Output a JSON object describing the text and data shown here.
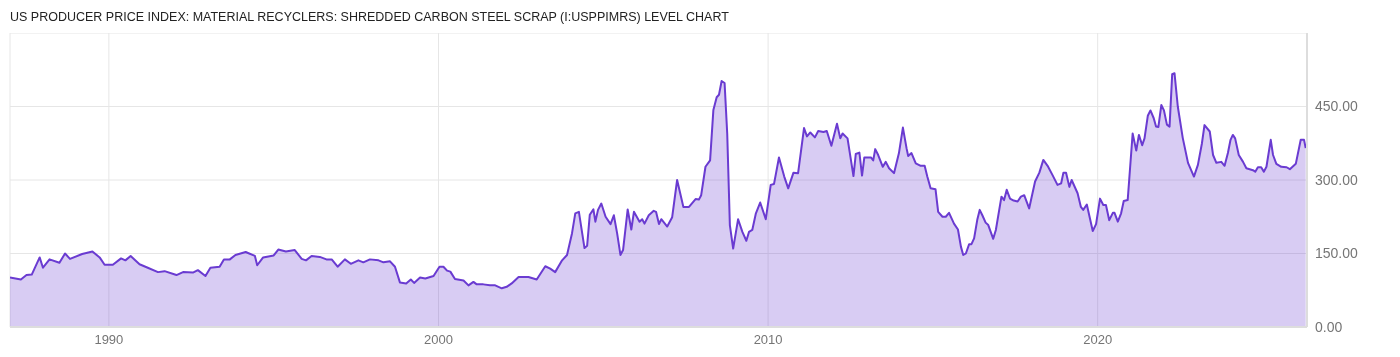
{
  "chart_data": {
    "type": "area",
    "title": "US PRODUCER PRICE INDEX: MATERIAL RECYCLERS: SHREDDED CARBON STEEL SCRAP (I:USPPIMRS) LEVEL CHART",
    "x": [
      1987.0,
      1987.33,
      1987.5,
      1987.66,
      1987.9,
      1988.0,
      1988.2,
      1988.5,
      1988.67,
      1988.82,
      1989.19,
      1989.5,
      1989.72,
      1989.87,
      1990.12,
      1990.37,
      1990.5,
      1990.66,
      1990.93,
      1991.18,
      1991.49,
      1991.69,
      1992.05,
      1992.25,
      1992.55,
      1992.7,
      1992.93,
      1993.08,
      1993.36,
      1993.49,
      1993.67,
      1993.84,
      1994.15,
      1994.43,
      1994.5,
      1994.68,
      1995.0,
      1995.14,
      1995.37,
      1995.64,
      1995.85,
      1995.98,
      1996.15,
      1996.4,
      1996.6,
      1996.76,
      1996.94,
      1997.16,
      1997.34,
      1997.57,
      1997.72,
      1997.92,
      1998.18,
      1998.33,
      1998.53,
      1998.68,
      1998.83,
      1999.02,
      1999.16,
      1999.26,
      1999.44,
      1999.6,
      1999.85,
      2000.03,
      2000.15,
      2000.26,
      2000.36,
      2000.5,
      2000.76,
      2000.91,
      2001.06,
      2001.16,
      2001.36,
      2001.56,
      2001.72,
      2001.92,
      2002.07,
      2002.22,
      2002.43,
      2002.73,
      2002.98,
      2003.24,
      2003.39,
      2003.54,
      2003.75,
      2003.9,
      2004.05,
      2004.15,
      2004.26,
      2004.43,
      2004.51,
      2004.59,
      2004.7,
      2004.76,
      2004.84,
      2004.94,
      2005.07,
      2005.22,
      2005.32,
      2005.42,
      2005.52,
      2005.6,
      2005.74,
      2005.85,
      2005.93,
      2006.1,
      2006.18,
      2006.25,
      2006.38,
      2006.53,
      2006.6,
      2006.69,
      2006.76,
      2006.94,
      2007.09,
      2007.24,
      2007.43,
      2007.6,
      2007.8,
      2007.9,
      2007.97,
      2008.1,
      2008.24,
      2008.34,
      2008.44,
      2008.51,
      2008.59,
      2008.68,
      2008.76,
      2008.84,
      2008.94,
      2009.09,
      2009.22,
      2009.34,
      2009.42,
      2009.52,
      2009.63,
      2009.76,
      2009.93,
      2010.08,
      2010.18,
      2010.33,
      2010.49,
      2010.61,
      2010.77,
      2010.91,
      2011.09,
      2011.18,
      2011.28,
      2011.42,
      2011.52,
      2011.68,
      2011.78,
      2011.92,
      2012.09,
      2012.19,
      2012.26,
      2012.41,
      2012.59,
      2012.66,
      2012.77,
      2012.85,
      2012.92,
      2013.12,
      2013.19,
      2013.25,
      2013.34,
      2013.48,
      2013.57,
      2013.67,
      2013.82,
      2013.97,
      2014.09,
      2014.2,
      2014.25,
      2014.35,
      2014.48,
      2014.63,
      2014.75,
      2014.83,
      2014.93,
      2015.08,
      2015.16,
      2015.29,
      2015.39,
      2015.49,
      2015.64,
      2015.76,
      2015.85,
      2015.92,
      2016.0,
      2016.1,
      2016.17,
      2016.25,
      2016.35,
      2016.42,
      2016.5,
      2016.6,
      2016.68,
      2016.83,
      2016.91,
      2017.08,
      2017.16,
      2017.24,
      2017.34,
      2017.45,
      2017.57,
      2017.67,
      2017.77,
      2017.92,
      2018.1,
      2018.23,
      2018.35,
      2018.48,
      2018.63,
      2018.78,
      2018.89,
      2018.96,
      2019.04,
      2019.14,
      2019.21,
      2019.39,
      2019.49,
      2019.56,
      2019.67,
      2019.85,
      2019.95,
      2020.07,
      2020.17,
      2020.25,
      2020.35,
      2020.46,
      2020.51,
      2020.61,
      2020.71,
      2020.79,
      2020.91,
      2021.06,
      2021.17,
      2021.25,
      2021.35,
      2021.42,
      2021.52,
      2021.6,
      2021.7,
      2021.77,
      2021.84,
      2021.93,
      2022.01,
      2022.1,
      2022.18,
      2022.26,
      2022.33,
      2022.43,
      2022.58,
      2022.74,
      2022.92,
      2023.04,
      2023.16,
      2023.24,
      2023.4,
      2023.5,
      2023.6,
      2023.75,
      2023.85,
      2023.95,
      2024.03,
      2024.1,
      2024.17,
      2024.28,
      2024.41,
      2024.51,
      2024.71,
      2024.78,
      2024.86,
      2024.96,
      2025.04,
      2025.12,
      2025.25,
      2025.32,
      2025.42,
      2025.57,
      2025.73,
      2025.83,
      2026.01,
      2026.16,
      2026.26,
      2026.31
    ],
    "series": [
      {
        "color": "#6a3bd1",
        "values": [
          101,
          97,
          106,
          107,
          142,
          121,
          138,
          131,
          150,
          139,
          149,
          154,
          142,
          127,
          127,
          140,
          136,
          145,
          128,
          121,
          112,
          114,
          106,
          112,
          111,
          116,
          104,
          121,
          123,
          138,
          138,
          147,
          153,
          145,
          126,
          142,
          146,
          158,
          154,
          157,
          139,
          136,
          145,
          143,
          138,
          138,
          123,
          138,
          129,
          136,
          132,
          138,
          136,
          132,
          134,
          123,
          91,
          89,
          97,
          90,
          101,
          99,
          104,
          123,
          123,
          115,
          113,
          98,
          95,
          85,
          92,
          87,
          87,
          85,
          85,
          79,
          82,
          89,
          102,
          102,
          97,
          124,
          119,
          112,
          136,
          147,
          191,
          232,
          235,
          161,
          166,
          229,
          240,
          215,
          239,
          252,
          225,
          210,
          228,
          191,
          147,
          157,
          240,
          199,
          235,
          215,
          220,
          211,
          228,
          237,
          235,
          210,
          220,
          205,
          224,
          300,
          245,
          245,
          261,
          260,
          269,
          327,
          340,
          443,
          469,
          474,
          502,
          498,
          395,
          208,
          160,
          220,
          194,
          176,
          194,
          198,
          232,
          254,
          220,
          290,
          292,
          346,
          307,
          283,
          315,
          314,
          406,
          389,
          397,
          387,
          400,
          398,
          400,
          370,
          415,
          385,
          395,
          385,
          308,
          353,
          356,
          309,
          346,
          346,
          340,
          363,
          351,
          327,
          337,
          324,
          314,
          355,
          407,
          365,
          349,
          355,
          334,
          329,
          329,
          307,
          283,
          281,
          235,
          225,
          225,
          233,
          211,
          199,
          164,
          147,
          150,
          169,
          169,
          181,
          220,
          239,
          228,
          213,
          208,
          180,
          198,
          266,
          259,
          280,
          262,
          258,
          256,
          266,
          269,
          242,
          297,
          315,
          341,
          329,
          310,
          290,
          293,
          315,
          315,
          286,
          300,
          273,
          245,
          239,
          250,
          196,
          210,
          262,
          249,
          249,
          218,
          233,
          233,
          215,
          232,
          257,
          259,
          395,
          360,
          392,
          371,
          385,
          431,
          442,
          426,
          409,
          408,
          453,
          442,
          413,
          409,
          516,
          518,
          450,
          386,
          335,
          307,
          331,
          374,
          412,
          399,
          351,
          335,
          337,
          329,
          355,
          382,
          392,
          385,
          351,
          337,
          324,
          320,
          317,
          326,
          326,
          317,
          327,
          382,
          351,
          333,
          327,
          326,
          322,
          333,
          382,
          382,
          365
        ]
      }
    ],
    "xlim": [
      1987.0,
      2026.35
    ],
    "xticks": [
      1990,
      2000,
      2010,
      2020
    ],
    "ylim": [
      0,
      600
    ],
    "yticks": [
      {
        "value": 0,
        "label": "0.00"
      },
      {
        "value": 150,
        "label": "150.00"
      },
      {
        "value": 300,
        "label": "300.00"
      },
      {
        "value": 450,
        "label": "450.00"
      }
    ],
    "grid": true
  }
}
